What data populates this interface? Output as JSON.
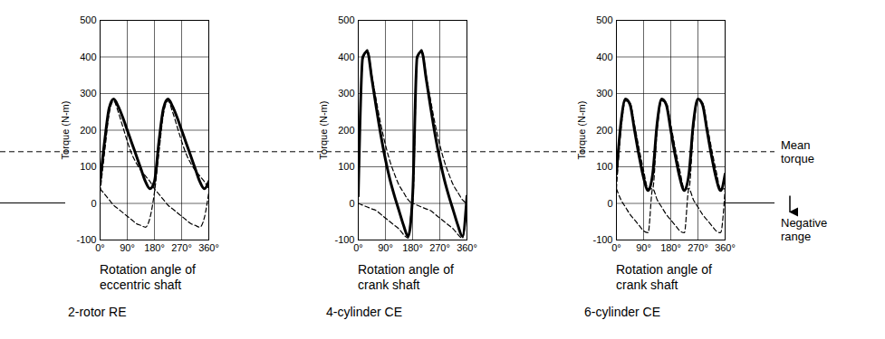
{
  "chart_data": [
    {
      "type": "line",
      "subtitle": "2-rotor RE",
      "x_label": "Rotation angle of eccentric shaft",
      "y_label": "Torque (N-m)",
      "x": [
        0,
        15,
        30,
        45,
        60,
        75,
        90,
        105,
        120,
        135,
        150,
        165,
        180,
        195,
        210,
        225,
        240,
        255,
        270,
        285,
        300,
        315,
        330,
        345,
        360
      ],
      "xlim": [
        0,
        360
      ],
      "xticks": [
        {
          "value": 0,
          "label": "0°"
        },
        {
          "value": 90,
          "label": "90°"
        },
        {
          "value": 180,
          "label": "180°"
        },
        {
          "value": 270,
          "label": "270°"
        },
        {
          "value": 360,
          "label": "360°"
        }
      ],
      "ylim": [
        -100,
        500
      ],
      "yticks": [
        -100,
        0,
        100,
        200,
        300,
        400,
        500
      ],
      "grid": true,
      "series": [
        {
          "color": "#000000",
          "line_style": "dashed",
          "values": [
            30,
            140,
            245,
            280,
            250,
            210,
            170,
            135,
            110,
            90,
            75,
            60,
            40,
            25,
            10,
            -5,
            -15,
            -25,
            -35,
            -45,
            -55,
            -60,
            -65,
            -40,
            30
          ]
        },
        {
          "color": "#000000",
          "line_style": "dashed",
          "values": [
            40,
            25,
            10,
            -5,
            -15,
            -25,
            -35,
            -45,
            -55,
            -60,
            -65,
            -40,
            30,
            140,
            245,
            280,
            250,
            210,
            170,
            135,
            110,
            90,
            75,
            60,
            40
          ]
        },
        {
          "color": "#000000",
          "line_style": "solid",
          "values": [
            60,
            170,
            260,
            285,
            265,
            235,
            200,
            165,
            130,
            95,
            60,
            40,
            60,
            170,
            260,
            285,
            265,
            235,
            200,
            165,
            130,
            95,
            60,
            40,
            60
          ]
        }
      ]
    },
    {
      "type": "line",
      "subtitle": "4-cylinder CE",
      "x_label": "Rotation angle of crank shaft",
      "y_label": "Torque (N-m)",
      "x": [
        0,
        15,
        30,
        45,
        60,
        75,
        90,
        105,
        120,
        135,
        150,
        165,
        180,
        195,
        210,
        225,
        240,
        255,
        270,
        285,
        300,
        315,
        330,
        345,
        360
      ],
      "xlim": [
        0,
        360
      ],
      "xticks": [
        {
          "value": 0,
          "label": "0°"
        },
        {
          "value": 90,
          "label": "90°"
        },
        {
          "value": 180,
          "label": "180°"
        },
        {
          "value": 270,
          "label": "270°"
        },
        {
          "value": 360,
          "label": "360°"
        }
      ],
      "ylim": [
        -100,
        500
      ],
      "yticks": [
        -100,
        0,
        100,
        200,
        300,
        400,
        500
      ],
      "grid": true,
      "series": [
        {
          "color": "#000000",
          "line_style": "dashed",
          "values": [
            0,
            390,
            420,
            350,
            280,
            215,
            160,
            115,
            80,
            50,
            30,
            10,
            0,
            390,
            420,
            350,
            280,
            215,
            160,
            115,
            80,
            50,
            30,
            10,
            0
          ]
        },
        {
          "color": "#000000",
          "line_style": "dashed",
          "values": [
            0,
            -5,
            -10,
            -15,
            -20,
            -30,
            -40,
            -50,
            -60,
            -70,
            -85,
            -95,
            0,
            -5,
            -10,
            -15,
            -20,
            -30,
            -40,
            -50,
            -60,
            -70,
            -85,
            -95,
            0
          ]
        },
        {
          "color": "#000000",
          "line_style": "solid",
          "values": [
            20,
            400,
            415,
            340,
            260,
            185,
            120,
            65,
            20,
            -20,
            -60,
            -90,
            20,
            400,
            415,
            340,
            260,
            185,
            120,
            65,
            20,
            -20,
            -60,
            -90,
            20
          ]
        }
      ]
    },
    {
      "type": "line",
      "subtitle": "6-cylinder CE",
      "x_label": "Rotation angle of crank shaft",
      "y_label": "Torque (N-m)",
      "x": [
        0,
        15,
        30,
        45,
        60,
        75,
        90,
        105,
        120,
        135,
        150,
        165,
        180,
        195,
        210,
        225,
        240,
        255,
        270,
        285,
        300,
        315,
        330,
        345,
        360
      ],
      "xlim": [
        0,
        360
      ],
      "xticks": [
        {
          "value": 0,
          "label": "0°"
        },
        {
          "value": 90,
          "label": "90°"
        },
        {
          "value": 180,
          "label": "180°"
        },
        {
          "value": 270,
          "label": "270°"
        },
        {
          "value": 360,
          "label": "360°"
        }
      ],
      "ylim": [
        -100,
        500
      ],
      "yticks": [
        -100,
        0,
        100,
        200,
        300,
        400,
        500
      ],
      "grid": true,
      "series": [
        {
          "color": "#000000",
          "line_style": "dashed",
          "values": [
            40,
            200,
            280,
            275,
            215,
            150,
            90,
            40,
            40,
            200,
            280,
            275,
            215,
            150,
            90,
            40,
            40,
            200,
            280,
            275,
            215,
            150,
            90,
            40,
            40
          ]
        },
        {
          "color": "#000000",
          "line_style": "dashed",
          "values": [
            40,
            10,
            -10,
            -30,
            -45,
            -60,
            -75,
            -80,
            40,
            10,
            -10,
            -30,
            -45,
            -60,
            -75,
            -80,
            40,
            10,
            -10,
            -30,
            -45,
            -60,
            -75,
            -80,
            40
          ]
        },
        {
          "color": "#000000",
          "line_style": "solid",
          "values": [
            80,
            220,
            285,
            270,
            200,
            130,
            70,
            35,
            80,
            220,
            285,
            270,
            200,
            130,
            70,
            35,
            80,
            220,
            285,
            270,
            200,
            130,
            70,
            35,
            80
          ]
        }
      ]
    }
  ],
  "annotations": [
    {
      "text": "Mean torque",
      "y": 140,
      "line_style": "dashed"
    },
    {
      "text": "Negative range",
      "y": 0,
      "line_style": "solid"
    }
  ]
}
